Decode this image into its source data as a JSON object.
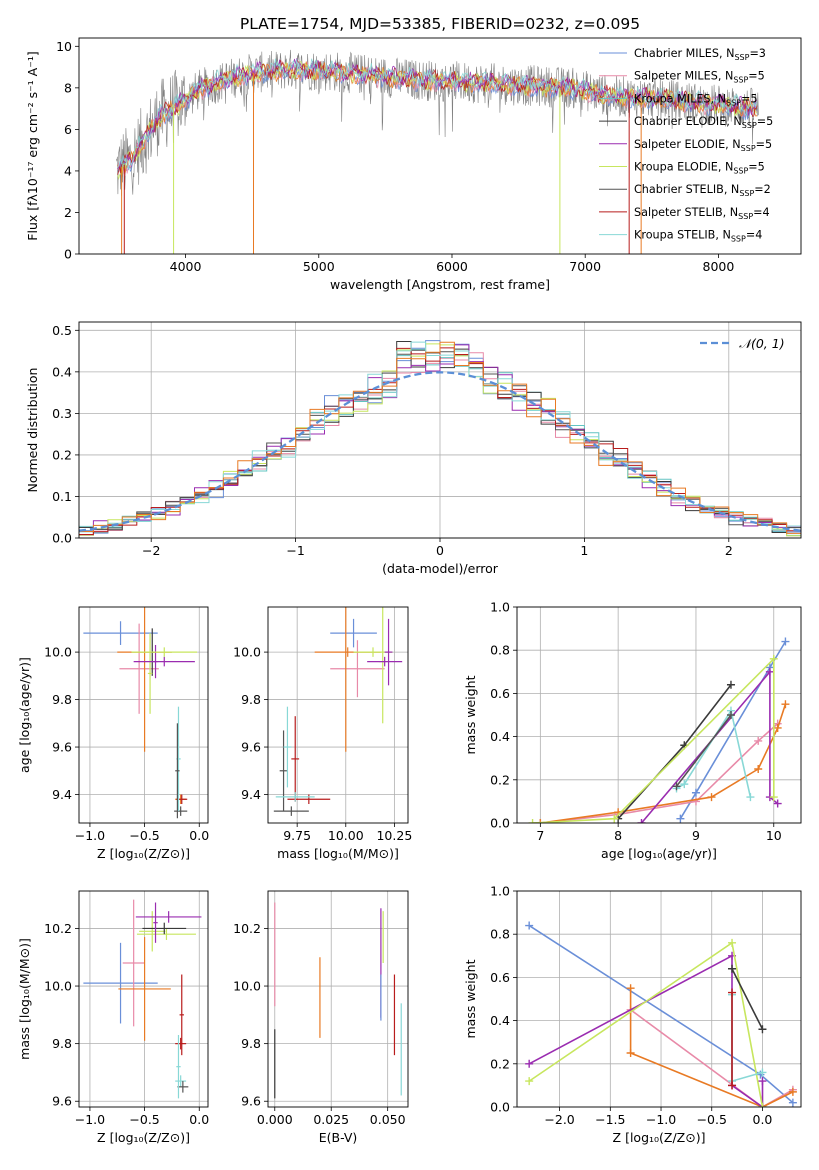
{
  "figure": {
    "title": "PLATE=1754, MJD=53385, FIBERID=0232, z=0.095"
  },
  "colors": {
    "cm": "#6a8fd8",
    "sm": "#e88aa8",
    "km": "#62c4c2",
    "ce": "#3a3a3a",
    "se": "#9a2cb0",
    "ke": "#c7e65e",
    "cs": "#545454",
    "ss": "#b81c1c",
    "ks": "#88d8d6",
    "orange": "#e87a24",
    "gray": "#808080",
    "normal": "#5b8fd6"
  },
  "chart_data": [
    {
      "id": "spectrum",
      "type": "line",
      "xlabel": "wavelength [Angstrom, rest frame]",
      "ylabel": "Flux [fλ10⁻¹⁷ erg cm⁻² s⁻¹ A⁻¹]",
      "xlim": [
        3200,
        8620
      ],
      "ylim": [
        0,
        10.4
      ],
      "xticks": [
        4000,
        5000,
        6000,
        7000,
        8000
      ],
      "yticks": [
        0,
        2,
        4,
        6,
        8,
        10
      ],
      "grid": false,
      "legend_position": "top-right",
      "legend": [
        {
          "label": "Chabrier MILES, N",
          "sub": "SSP",
          "suffix": "=3",
          "color": "cm"
        },
        {
          "label": "Salpeter MILES, N",
          "sub": "SSP",
          "suffix": "=5",
          "color": "sm"
        },
        {
          "label": "Kroupa MILES, N",
          "sub": "SSP",
          "suffix": "=5",
          "color": "km"
        },
        {
          "label": "Chabrier ELODIE, N",
          "sub": "SSP",
          "suffix": "=5",
          "color": "ce"
        },
        {
          "label": "Salpeter ELODIE, N",
          "sub": "SSP",
          "suffix": "=5",
          "color": "se"
        },
        {
          "label": "Kroupa ELODIE, N",
          "sub": "SSP",
          "suffix": "=5",
          "color": "ke"
        },
        {
          "label": "Chabrier STELIB, N",
          "sub": "SSP",
          "suffix": "=2",
          "color": "cs"
        },
        {
          "label": "Salpeter STELIB, N",
          "sub": "SSP",
          "suffix": "=4",
          "color": "ss"
        },
        {
          "label": "Kroupa STELIB, N",
          "sub": "SSP",
          "suffix": "=4",
          "color": "ks"
        }
      ],
      "continuum": [
        [
          3480,
          4.0
        ],
        [
          3600,
          4.6
        ],
        [
          3700,
          5.6
        ],
        [
          3800,
          6.6
        ],
        [
          3950,
          7.2
        ],
        [
          4100,
          7.9
        ],
        [
          4300,
          8.4
        ],
        [
          4500,
          8.7
        ],
        [
          4800,
          8.9
        ],
        [
          5100,
          8.8
        ],
        [
          5400,
          8.6
        ],
        [
          5700,
          8.4
        ],
        [
          6000,
          8.3
        ],
        [
          6300,
          8.2
        ],
        [
          6600,
          8.1
        ],
        [
          6900,
          8.0
        ],
        [
          7200,
          7.6
        ],
        [
          7500,
          7.5
        ],
        [
          7800,
          7.3
        ],
        [
          8100,
          7.1
        ],
        [
          8300,
          7.0
        ]
      ],
      "drops": [
        {
          "x": 3520,
          "color": "orange"
        },
        {
          "x": 3540,
          "color": "ss"
        },
        {
          "x": 3910,
          "color": "ke"
        },
        {
          "x": 4510,
          "color": "orange"
        },
        {
          "x": 6810,
          "color": "ke"
        },
        {
          "x": 7330,
          "color": "ss"
        },
        {
          "x": 7420,
          "color": "orange"
        }
      ]
    },
    {
      "id": "residuals",
      "type": "step",
      "xlabel": "(data-model)/error",
      "ylabel": "Normed distribution",
      "xlim": [
        -2.5,
        2.5
      ],
      "ylim": [
        0,
        0.52
      ],
      "xticks": [
        -2,
        -1,
        0,
        1,
        2
      ],
      "yticks": [
        0.0,
        0.1,
        0.2,
        0.3,
        0.4,
        0.5
      ],
      "grid": true,
      "legend_position": "top-right",
      "normal_label": "𝒩(0, 1)",
      "bin_width": 0.1,
      "series_colors": [
        "cm",
        "sm",
        "km",
        "ce",
        "se",
        "ke",
        "cs",
        "ss",
        "ks",
        "orange"
      ]
    },
    {
      "id": "age-vs-Z",
      "type": "errorbar",
      "xlabel": "Z [log₁₀(Z/Z⊙)]",
      "ylabel": "age  [log₁₀(age/yr)]",
      "xlim": [
        -1.1,
        0.08
      ],
      "ylim": [
        9.28,
        10.19
      ],
      "xticks": [
        -1.0,
        -0.5,
        0.0
      ],
      "yticks": [
        9.4,
        9.6,
        9.8,
        10.0
      ],
      "grid": true,
      "points": [
        {
          "x": -0.72,
          "xerr": 0.34,
          "y": 10.08,
          "yerr": 0.05,
          "color": "cm"
        },
        {
          "x": -0.55,
          "xerr": 0.18,
          "y": 9.93,
          "yerr": 0.19,
          "color": "sm"
        },
        {
          "x": -0.5,
          "xerr": 0.25,
          "y": 10.0,
          "yerr": 0.42,
          "color": "orange"
        },
        {
          "x": -0.43,
          "xerr": 0.02,
          "y": 10.0,
          "yerr": 0.1,
          "color": "ce"
        },
        {
          "x": -0.45,
          "xerr": 0.02,
          "y": 9.91,
          "yerr": 0.17,
          "color": "ke"
        },
        {
          "x": -0.4,
          "xerr": 0.02,
          "y": 9.96,
          "yerr": 0.07,
          "color": "se"
        },
        {
          "x": -0.32,
          "xerr": 0.28,
          "y": 9.96,
          "yerr": 0.02,
          "color": "se"
        },
        {
          "x": -0.32,
          "xerr": 0.3,
          "y": 10.0,
          "yerr": 0.02,
          "color": "ke"
        },
        {
          "x": -0.17,
          "xerr": 0.05,
          "y": 9.38,
          "yerr": 0.02,
          "color": "orange"
        },
        {
          "x": -0.16,
          "xerr": 0.05,
          "y": 9.38,
          "yerr": 0.02,
          "color": "ss"
        },
        {
          "x": -0.17,
          "xerr": 0.06,
          "y": 9.33,
          "yerr": 0.02,
          "color": "cs"
        },
        {
          "x": -0.19,
          "xerr": 0.02,
          "y": 9.55,
          "yerr": 0.22,
          "color": "ks"
        },
        {
          "x": -0.2,
          "xerr": 0.02,
          "y": 9.5,
          "yerr": 0.2,
          "color": "cs"
        }
      ]
    },
    {
      "id": "age-vs-mass",
      "type": "errorbar",
      "xlabel": "mass [log₁₀(M/M⊙)]",
      "ylabel": "",
      "xlim": [
        9.6,
        10.32
      ],
      "ylim": [
        9.28,
        10.19
      ],
      "xticks": [
        9.75,
        10.0,
        10.25
      ],
      "yticks": [
        9.4,
        9.6,
        9.8,
        10.0
      ],
      "grid": true,
      "points": [
        {
          "x": 10.04,
          "xerr": 0.12,
          "y": 10.08,
          "yerr": 0.06,
          "color": "cm"
        },
        {
          "x": 10.06,
          "xerr": 0.14,
          "y": 9.93,
          "yerr": 0.12,
          "color": "sm"
        },
        {
          "x": 10.0,
          "xerr": 0.0,
          "y": 9.9,
          "yerr": 0.32,
          "color": "orange"
        },
        {
          "x": 10.01,
          "xerr": 0.17,
          "y": 10.0,
          "yerr": 0.02,
          "color": "orange"
        },
        {
          "x": 10.14,
          "xerr": 0.1,
          "y": 10.0,
          "yerr": 0.02,
          "color": "ke"
        },
        {
          "x": 10.19,
          "xerr": 0.02,
          "y": 9.96,
          "yerr": 0.26,
          "color": "ke"
        },
        {
          "x": 10.2,
          "xerr": 0.09,
          "y": 9.96,
          "yerr": 0.02,
          "color": "se"
        },
        {
          "x": 10.22,
          "xerr": 0.02,
          "y": 10.0,
          "yerr": 0.14,
          "color": "se"
        },
        {
          "x": 9.74,
          "xerr": 0.02,
          "y": 9.55,
          "yerr": 0.18,
          "color": "ss"
        },
        {
          "x": 9.68,
          "xerr": 0.02,
          "y": 9.5,
          "yerr": 0.17,
          "color": "cs"
        },
        {
          "x": 9.7,
          "xerr": 0.02,
          "y": 9.6,
          "yerr": 0.17,
          "color": "ks"
        },
        {
          "x": 9.81,
          "xerr": 0.11,
          "y": 9.38,
          "yerr": 0.02,
          "color": "ss"
        },
        {
          "x": 9.72,
          "xerr": 0.09,
          "y": 9.33,
          "yerr": 0.02,
          "color": "cs"
        },
        {
          "x": 9.74,
          "xerr": 0.1,
          "y": 9.39,
          "yerr": 0.02,
          "color": "ks"
        }
      ]
    },
    {
      "id": "weight-vs-age",
      "type": "line",
      "xlabel": "age  [log₁₀(age/yr)]",
      "ylabel": "mass weight",
      "xlim": [
        6.7,
        10.35
      ],
      "ylim": [
        0,
        1
      ],
      "xticks": [
        7,
        8,
        9,
        10
      ],
      "yticks": [
        0.0,
        0.2,
        0.4,
        0.6,
        0.8,
        1.0
      ],
      "grid": true,
      "series": [
        {
          "color": "cm",
          "points": [
            [
              8.8,
              0.02
            ],
            [
              9.0,
              0.14
            ],
            [
              9.95,
              0.72
            ],
            [
              10.15,
              0.84
            ]
          ]
        },
        {
          "color": "sm",
          "points": [
            [
              7.0,
              0.0
            ],
            [
              8.0,
              0.04
            ],
            [
              9.0,
              0.1
            ],
            [
              9.8,
              0.38
            ],
            [
              10.05,
              0.46
            ]
          ]
        },
        {
          "color": "orange",
          "points": [
            [
              7.0,
              0.0
            ],
            [
              8.0,
              0.05
            ],
            [
              9.2,
              0.12
            ],
            [
              9.8,
              0.25
            ],
            [
              10.05,
              0.44
            ],
            [
              10.15,
              0.55
            ]
          ]
        },
        {
          "color": "ce",
          "points": [
            [
              8.0,
              0.02
            ],
            [
              8.85,
              0.36
            ],
            [
              9.45,
              0.64
            ]
          ]
        },
        {
          "color": "se",
          "points": [
            [
              8.3,
              0.0
            ],
            [
              9.95,
              0.7
            ],
            [
              9.95,
              0.12
            ],
            [
              10.05,
              0.09
            ]
          ]
        },
        {
          "color": "ke",
          "points": [
            [
              6.9,
              0.0
            ],
            [
              7.95,
              0.02
            ],
            [
              10.0,
              0.76
            ],
            [
              10.0,
              0.12
            ]
          ]
        },
        {
          "color": "ks",
          "points": [
            [
              8.75,
              0.16
            ],
            [
              8.85,
              0.18
            ],
            [
              9.45,
              0.52
            ],
            [
              9.7,
              0.12
            ]
          ]
        },
        {
          "color": "cs",
          "points": [
            [
              8.75,
              0.17
            ],
            [
              9.45,
              0.5
            ]
          ]
        }
      ]
    },
    {
      "id": "mass-vs-Z",
      "type": "errorbar",
      "xlabel": "Z [log₁₀(Z/Z⊙)]",
      "ylabel": "mass [log₁₀(M/M⊙)]",
      "xlim": [
        -1.1,
        0.08
      ],
      "ylim": [
        9.58,
        10.33
      ],
      "xticks": [
        -1.0,
        -0.5,
        0.0
      ],
      "yticks": [
        9.6,
        9.8,
        10.0,
        10.2
      ],
      "grid": true,
      "points": [
        {
          "x": -0.72,
          "xerr": 0.34,
          "y": 10.01,
          "yerr": 0.14,
          "color": "cm"
        },
        {
          "x": -0.6,
          "xerr": 0.1,
          "y": 10.08,
          "yerr": 0.22,
          "color": "sm"
        },
        {
          "x": -0.5,
          "xerr": 0.24,
          "y": 9.99,
          "yerr": 0.18,
          "color": "orange"
        },
        {
          "x": -0.43,
          "xerr": 0.12,
          "y": 10.19,
          "yerr": 0.07,
          "color": "ke"
        },
        {
          "x": -0.3,
          "xerr": 0.27,
          "y": 10.18,
          "yerr": 0.02,
          "color": "ke"
        },
        {
          "x": -0.32,
          "xerr": 0.2,
          "y": 10.2,
          "yerr": 0.02,
          "color": "ce"
        },
        {
          "x": -0.28,
          "xerr": 0.3,
          "y": 10.24,
          "yerr": 0.02,
          "color": "se"
        },
        {
          "x": -0.4,
          "xerr": 0.02,
          "y": 10.22,
          "yerr": 0.07,
          "color": "se"
        },
        {
          "x": -0.17,
          "xerr": 0.05,
          "y": 9.8,
          "yerr": 0.02,
          "color": "ss"
        },
        {
          "x": -0.16,
          "xerr": 0.02,
          "y": 9.9,
          "yerr": 0.14,
          "color": "ss"
        },
        {
          "x": -0.17,
          "xerr": 0.05,
          "y": 9.67,
          "yerr": 0.02,
          "color": "ks"
        },
        {
          "x": -0.15,
          "xerr": 0.05,
          "y": 9.65,
          "yerr": 0.02,
          "color": "cs"
        },
        {
          "x": -0.19,
          "xerr": 0.02,
          "y": 9.72,
          "yerr": 0.11,
          "color": "ks"
        }
      ]
    },
    {
      "id": "mass-vs-EBV",
      "type": "errorbar",
      "xlabel": "E(B-V)",
      "ylabel": "",
      "xlim": [
        -0.003,
        0.059
      ],
      "ylim": [
        9.58,
        10.33
      ],
      "xticks": [
        0.0,
        0.025,
        0.05
      ],
      "yticks": [
        9.6,
        9.8,
        10.0,
        10.2
      ],
      "grid": true,
      "points": [
        {
          "x": 0.0,
          "xerr": 0.0,
          "y": 9.73,
          "yerr": 0.12,
          "color": "ce"
        },
        {
          "x": 0.0,
          "xerr": 0.0,
          "y": 10.11,
          "yerr": 0.18,
          "color": "sm"
        },
        {
          "x": 0.02,
          "xerr": 0.0,
          "y": 9.96,
          "yerr": 0.14,
          "color": "orange"
        },
        {
          "x": 0.047,
          "xerr": 0.0,
          "y": 10.08,
          "yerr": 0.19,
          "color": "se"
        },
        {
          "x": 0.048,
          "xerr": 0.0,
          "y": 10.17,
          "yerr": 0.09,
          "color": "ke"
        },
        {
          "x": 0.047,
          "xerr": 0.0,
          "y": 9.96,
          "yerr": 0.08,
          "color": "cm"
        },
        {
          "x": 0.053,
          "xerr": 0.0,
          "y": 9.9,
          "yerr": 0.14,
          "color": "ss"
        },
        {
          "x": 0.056,
          "xerr": 0.0,
          "y": 9.78,
          "yerr": 0.16,
          "color": "ks"
        }
      ]
    },
    {
      "id": "weight-vs-Z",
      "type": "line",
      "xlabel": "Z [log₁₀(Z/Z⊙)]",
      "ylabel": "mass weight",
      "xlim": [
        -2.42,
        0.38
      ],
      "ylim": [
        0,
        1
      ],
      "xticks": [
        -2.0,
        -1.5,
        -1.0,
        -0.5,
        0.0
      ],
      "yticks": [
        0.0,
        0.2,
        0.4,
        0.6,
        0.8,
        1.0
      ],
      "grid": true,
      "series": [
        {
          "color": "cm",
          "points": [
            [
              -2.3,
              0.84
            ],
            [
              -0.02,
              0.15
            ],
            [
              0.3,
              0.02
            ]
          ]
        },
        {
          "color": "sm",
          "points": [
            [
              -1.3,
              0.45
            ],
            [
              0.0,
              0.0
            ],
            [
              0.3,
              0.08
            ]
          ]
        },
        {
          "color": "orange",
          "points": [
            [
              -1.3,
              0.55
            ],
            [
              -1.3,
              0.25
            ],
            [
              0.0,
              0.0
            ],
            [
              0.3,
              0.07
            ]
          ]
        },
        {
          "color": "se",
          "points": [
            [
              -2.3,
              0.2
            ],
            [
              -0.3,
              0.7
            ],
            [
              -0.3,
              0.1
            ],
            [
              0.0,
              0.0
            ],
            [
              0.0,
              0.12
            ]
          ]
        },
        {
          "color": "ke",
          "points": [
            [
              -2.3,
              0.12
            ],
            [
              -0.3,
              0.76
            ],
            [
              0.0,
              0.0
            ]
          ]
        },
        {
          "color": "ce",
          "points": [
            [
              -0.3,
              0.64
            ],
            [
              0.0,
              0.36
            ]
          ]
        },
        {
          "color": "ks",
          "points": [
            [
              -0.3,
              0.52
            ],
            [
              -0.3,
              0.12
            ],
            [
              0.0,
              0.16
            ]
          ]
        },
        {
          "color": "ss",
          "points": [
            [
              -0.3,
              0.53
            ],
            [
              -0.3,
              0.1
            ]
          ]
        }
      ]
    }
  ]
}
